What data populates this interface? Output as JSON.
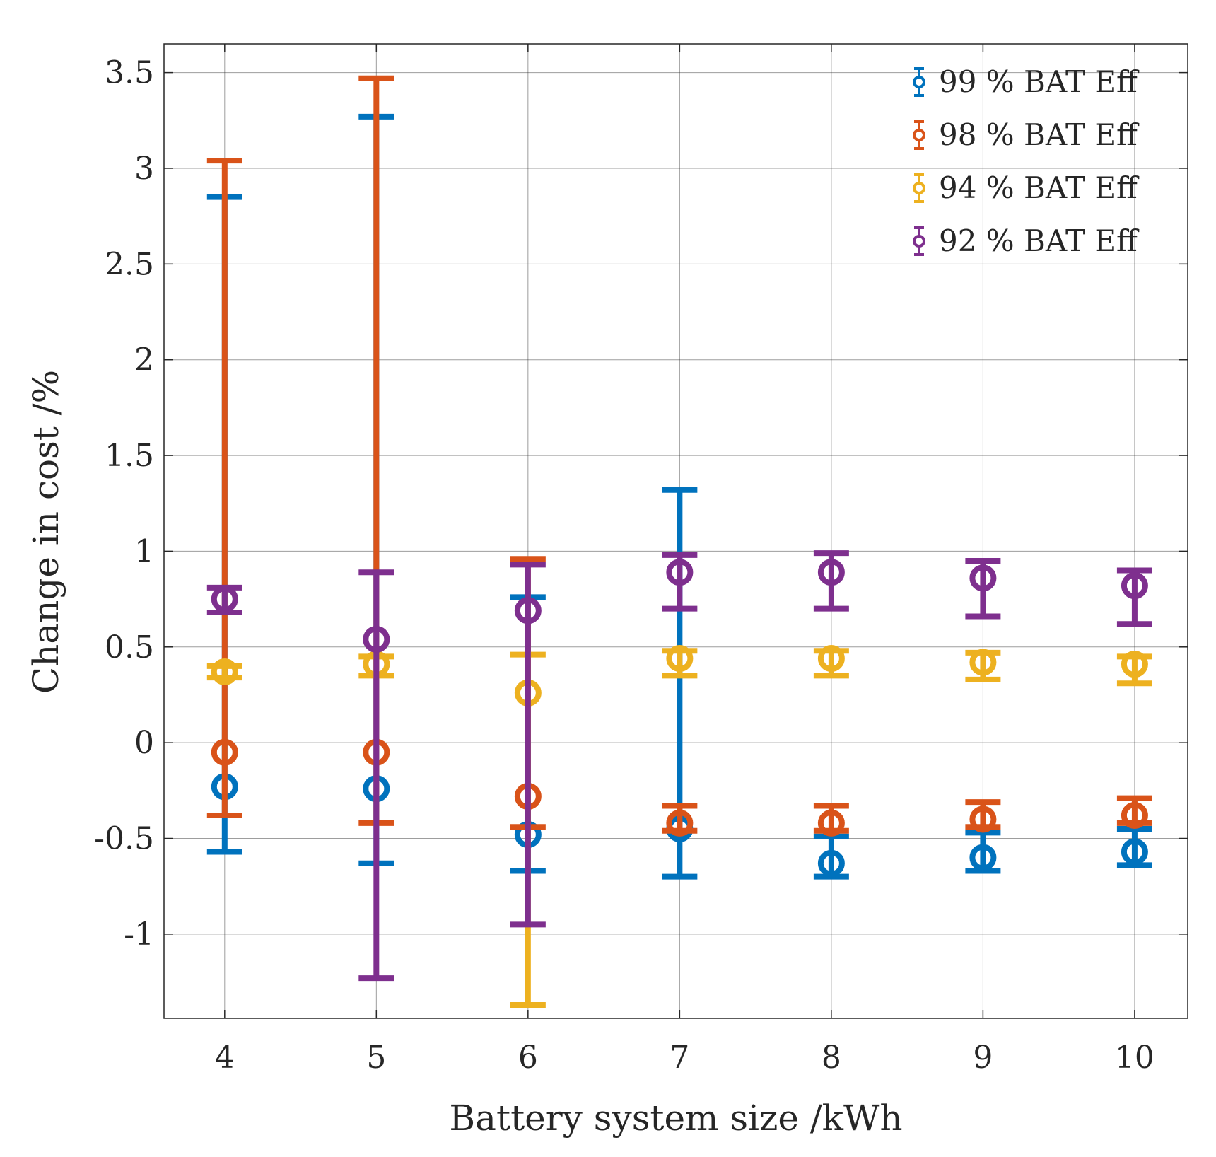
{
  "chart_data": {
    "type": "errorbar",
    "title": "",
    "xlabel": "Battery system size /kWh",
    "ylabel": "Change in cost /%",
    "xlim": [
      3.6,
      10.35
    ],
    "ylim": [
      -1.44,
      3.65
    ],
    "grid": true,
    "legend_position": "top-right",
    "x_ticks": [
      {
        "value": 4,
        "label": "4"
      },
      {
        "value": 5,
        "label": "5"
      },
      {
        "value": 6,
        "label": "6"
      },
      {
        "value": 7,
        "label": "7"
      },
      {
        "value": 8,
        "label": "8"
      },
      {
        "value": 9,
        "label": "9"
      },
      {
        "value": 10,
        "label": "10"
      }
    ],
    "y_ticks": [
      {
        "value": -1,
        "label": "-1"
      },
      {
        "value": -0.5,
        "label": "-0.5"
      },
      {
        "value": 0,
        "label": "0"
      },
      {
        "value": 0.5,
        "label": "0.5"
      },
      {
        "value": 1,
        "label": "1"
      },
      {
        "value": 1.5,
        "label": "1.5"
      },
      {
        "value": 2,
        "label": "2"
      },
      {
        "value": 2.5,
        "label": "2.5"
      },
      {
        "value": 3,
        "label": "3"
      },
      {
        "value": 3.5,
        "label": "3.5"
      }
    ],
    "x": [
      4,
      5,
      6,
      7,
      8,
      9,
      10
    ],
    "series": [
      {
        "name": "99 % BAT Eff",
        "color": "#0072BD",
        "values": [
          -0.23,
          -0.24,
          -0.48,
          -0.45,
          -0.63,
          -0.6,
          -0.57
        ],
        "lower": [
          -0.57,
          -0.63,
          -0.67,
          -0.7,
          -0.7,
          -0.67,
          -0.64
        ],
        "upper": [
          2.85,
          3.27,
          0.76,
          1.32,
          -0.49,
          -0.47,
          -0.45
        ]
      },
      {
        "name": "98 % BAT Eff",
        "color": "#D95319",
        "values": [
          -0.05,
          -0.05,
          -0.28,
          -0.42,
          -0.42,
          -0.4,
          -0.38
        ],
        "lower": [
          -0.38,
          -0.42,
          -0.44,
          -0.46,
          -0.46,
          -0.44,
          -0.42
        ],
        "upper": [
          3.04,
          3.47,
          0.96,
          -0.33,
          -0.33,
          -0.31,
          -0.29
        ]
      },
      {
        "name": "94 % BAT Eff",
        "color": "#EDB120",
        "values": [
          0.37,
          0.41,
          0.26,
          0.44,
          0.44,
          0.42,
          0.41
        ],
        "lower": [
          0.34,
          0.35,
          -1.37,
          0.35,
          0.35,
          0.33,
          0.31
        ],
        "upper": [
          0.4,
          0.45,
          0.46,
          0.48,
          0.48,
          0.47,
          0.45
        ]
      },
      {
        "name": "92 % BAT Eff",
        "color": "#7E2F8E",
        "values": [
          0.75,
          0.54,
          0.69,
          0.89,
          0.89,
          0.86,
          0.82
        ],
        "lower": [
          0.68,
          -1.23,
          -0.95,
          0.7,
          0.7,
          0.66,
          0.62
        ],
        "upper": [
          0.81,
          0.89,
          0.93,
          0.98,
          0.99,
          0.95,
          0.9
        ]
      }
    ]
  }
}
